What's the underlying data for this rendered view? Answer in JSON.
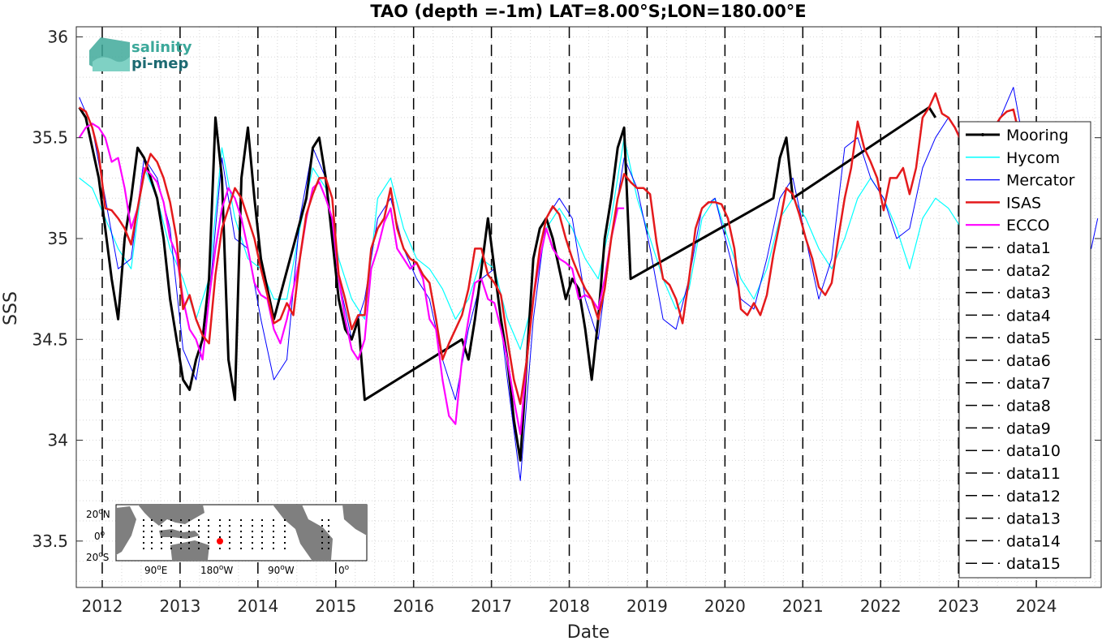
{
  "chart_data": {
    "type": "line",
    "title": "TAO (depth =-1m) LAT=8.00°S;LON=180.00°E",
    "xlabel": "Date",
    "ylabel": "SSS",
    "xlim": [
      "2011-09-01",
      "2024-11-01"
    ],
    "ylim": [
      33.27,
      36.05
    ],
    "x_ticks": [
      "2012",
      "2013",
      "2014",
      "2015",
      "2016",
      "2017",
      "2018",
      "2019",
      "2020",
      "2021",
      "2022",
      "2023",
      "2024"
    ],
    "y_ticks": [
      "33.5",
      "34",
      "34.5",
      "35",
      "35.5",
      "36"
    ],
    "y_tick_values": [
      33.5,
      34.0,
      34.5,
      35.0,
      35.5,
      36.0
    ],
    "grid": true,
    "legend_position": "right",
    "vertical_lines_x": [
      "2012-01-01",
      "2013-01-01",
      "2014-01-01",
      "2015-01-01",
      "2016-01-01",
      "2017-01-01",
      "2018-01-01",
      "2019-01-01",
      "2020-01-01",
      "2021-01-01",
      "2022-01-01",
      "2023-01-01",
      "2024-01-01"
    ],
    "series": [
      {
        "name": "Mooring",
        "color": "#000000",
        "x": [
          "2011-09",
          "2011-10",
          "2011-11",
          "2011-12",
          "2012-01",
          "2012-02",
          "2012-03",
          "2012-04",
          "2012-05",
          "2012-06",
          "2012-07",
          "2012-08",
          "2012-09",
          "2012-10",
          "2012-11",
          "2012-12",
          "2013-01",
          "2013-02",
          "2013-03",
          "2013-04",
          "2013-05",
          "2013-06",
          "2013-07",
          "2013-08",
          "2013-09",
          "2013-10",
          "2013-11",
          "2013-12",
          "2014-01",
          "2014-02",
          "2014-03",
          "2014-08",
          "2014-09",
          "2014-10",
          "2014-11",
          "2014-12",
          "2015-01",
          "2015-02",
          "2015-03",
          "2015-04",
          "2015-05",
          "2016-08",
          "2016-09",
          "2016-10",
          "2016-11",
          "2016-12",
          "2017-01",
          "2017-02",
          "2017-03",
          "2017-04",
          "2017-05",
          "2017-06",
          "2017-07",
          "2017-08",
          "2017-09",
          "2017-10",
          "2017-11",
          "2017-12",
          "2018-01",
          "2018-02",
          "2018-03",
          "2018-04",
          "2018-05",
          "2018-06",
          "2018-07",
          "2018-08",
          "2018-09",
          "2018-10",
          "2020-08",
          "2020-09",
          "2020-10",
          "2020-11",
          "2022-08",
          "2022-09"
        ],
        "values": [
          35.65,
          35.6,
          35.45,
          35.3,
          35.05,
          34.8,
          34.6,
          35.0,
          35.2,
          35.45,
          35.4,
          35.3,
          35.2,
          35.0,
          34.7,
          34.5,
          34.3,
          34.25,
          34.4,
          34.5,
          34.8,
          35.6,
          35.3,
          34.4,
          34.2,
          35.3,
          35.55,
          35.2,
          34.9,
          34.75,
          34.6,
          35.2,
          35.45,
          35.5,
          35.3,
          35.0,
          34.7,
          34.55,
          34.5,
          34.6,
          34.2,
          34.5,
          34.4,
          34.6,
          34.85,
          35.1,
          34.85,
          34.6,
          34.4,
          34.1,
          33.9,
          34.4,
          34.9,
          35.05,
          35.1,
          35.0,
          34.85,
          34.7,
          34.8,
          34.75,
          34.55,
          34.3,
          34.6,
          35.0,
          35.2,
          35.45,
          35.55,
          34.8,
          35.2,
          35.4,
          35.5,
          35.2,
          35.65,
          35.6
        ]
      },
      {
        "name": "Hycom",
        "color": "#00ffff",
        "x": [
          "2011-09",
          "2011-11",
          "2012-01",
          "2012-03",
          "2012-05",
          "2012-07",
          "2012-09",
          "2012-11",
          "2013-01",
          "2013-03",
          "2013-05",
          "2013-07",
          "2013-09",
          "2013-11",
          "2014-01",
          "2014-03",
          "2014-05",
          "2014-07",
          "2014-09",
          "2014-11",
          "2015-01",
          "2015-03",
          "2015-05",
          "2015-07",
          "2015-09",
          "2015-11",
          "2016-01",
          "2016-03",
          "2016-05",
          "2016-07",
          "2016-09",
          "2016-11",
          "2017-01",
          "2017-03",
          "2017-05",
          "2017-07",
          "2017-09",
          "2017-11",
          "2018-01",
          "2018-03",
          "2018-05",
          "2018-07",
          "2018-09",
          "2018-11",
          "2019-01",
          "2019-03",
          "2019-05",
          "2019-07",
          "2019-09",
          "2019-11",
          "2020-01",
          "2020-03",
          "2020-05",
          "2020-07",
          "2020-09",
          "2020-11",
          "2021-01",
          "2021-03",
          "2021-05",
          "2021-07",
          "2021-09",
          "2021-11",
          "2022-01",
          "2022-03",
          "2022-05",
          "2022-07",
          "2022-09",
          "2022-11",
          "2023-01",
          "2023-03",
          "2023-05",
          "2023-07",
          "2023-09"
        ],
        "values": [
          35.3,
          35.25,
          35.1,
          34.95,
          34.85,
          35.35,
          35.2,
          34.95,
          34.8,
          34.6,
          34.8,
          35.45,
          35.1,
          34.9,
          34.85,
          34.7,
          34.7,
          35.05,
          35.35,
          35.25,
          34.9,
          34.7,
          34.6,
          35.2,
          35.3,
          35.05,
          34.9,
          34.85,
          34.75,
          34.6,
          34.7,
          34.9,
          34.85,
          34.6,
          34.45,
          34.7,
          35.05,
          35.15,
          35.05,
          34.9,
          34.8,
          35.1,
          35.5,
          35.2,
          35.0,
          34.8,
          34.65,
          34.75,
          35.1,
          35.2,
          35.0,
          34.8,
          34.7,
          34.85,
          35.1,
          35.2,
          35.1,
          34.95,
          34.85,
          35.0,
          35.2,
          35.3,
          35.2,
          35.05,
          34.85,
          35.1,
          35.2,
          35.15,
          35.05,
          35.1,
          35.15,
          35.2,
          35.2
        ]
      },
      {
        "name": "Mercator",
        "color": "#0000ff",
        "x": [
          "2011-09",
          "2011-11",
          "2012-01",
          "2012-03",
          "2012-05",
          "2012-07",
          "2012-09",
          "2012-11",
          "2013-01",
          "2013-03",
          "2013-05",
          "2013-07",
          "2013-09",
          "2013-11",
          "2014-01",
          "2014-03",
          "2014-05",
          "2014-07",
          "2014-09",
          "2014-11",
          "2015-01",
          "2015-03",
          "2015-05",
          "2015-07",
          "2015-09",
          "2015-11",
          "2016-01",
          "2016-03",
          "2016-05",
          "2016-07",
          "2016-09",
          "2016-11",
          "2017-01",
          "2017-03",
          "2017-05",
          "2017-07",
          "2017-09",
          "2017-11",
          "2018-01",
          "2018-03",
          "2018-05",
          "2018-07",
          "2018-09",
          "2018-11",
          "2019-01",
          "2019-03",
          "2019-05",
          "2019-07",
          "2019-09",
          "2019-11",
          "2020-01",
          "2020-03",
          "2020-05",
          "2020-07",
          "2020-09",
          "2020-11",
          "2021-01",
          "2021-03",
          "2021-05",
          "2021-07",
          "2021-09",
          "2021-11",
          "2022-01",
          "2022-03",
          "2022-05",
          "2022-07",
          "2022-09",
          "2022-11",
          "2023-01",
          "2023-03",
          "2023-05",
          "2023-07",
          "2023-09",
          "2023-11",
          "2024-01",
          "2024-03",
          "2024-05",
          "2024-07",
          "2024-09",
          "2024-10"
        ],
        "values": [
          35.7,
          35.55,
          35.2,
          34.85,
          34.9,
          35.4,
          35.3,
          35.05,
          34.45,
          34.3,
          34.7,
          35.4,
          35.0,
          34.95,
          34.6,
          34.3,
          34.4,
          35.1,
          35.45,
          35.3,
          34.8,
          34.5,
          34.7,
          35.1,
          35.2,
          34.95,
          34.8,
          34.7,
          34.4,
          34.2,
          34.55,
          34.8,
          34.85,
          34.3,
          33.8,
          34.6,
          35.1,
          35.2,
          35.1,
          34.7,
          34.5,
          35.0,
          35.4,
          35.25,
          34.95,
          34.6,
          34.55,
          34.8,
          35.15,
          35.2,
          34.95,
          34.7,
          34.65,
          34.9,
          35.2,
          35.3,
          35.0,
          34.7,
          34.9,
          35.45,
          35.5,
          35.3,
          35.2,
          35.0,
          35.05,
          35.35,
          35.5,
          35.6,
          35.5,
          35.45,
          35.4,
          35.6,
          35.75,
          35.4,
          35.0,
          34.85,
          34.8,
          35.0,
          34.95,
          35.1
        ]
      },
      {
        "name": "ISAS",
        "color": "#e41a1c",
        "x": [
          "2011-09",
          "2011-10",
          "2011-11",
          "2011-12",
          "2012-01",
          "2012-02",
          "2012-03",
          "2012-04",
          "2012-05",
          "2012-06",
          "2012-07",
          "2012-08",
          "2012-09",
          "2012-10",
          "2012-11",
          "2012-12",
          "2013-01",
          "2013-02",
          "2013-03",
          "2013-04",
          "2013-05",
          "2013-06",
          "2013-07",
          "2013-08",
          "2013-09",
          "2013-10",
          "2013-11",
          "2013-12",
          "2014-01",
          "2014-02",
          "2014-03",
          "2014-04",
          "2014-05",
          "2014-06",
          "2014-07",
          "2014-08",
          "2014-09",
          "2014-10",
          "2014-11",
          "2014-12",
          "2015-01",
          "2015-02",
          "2015-03",
          "2015-04",
          "2015-05",
          "2015-06",
          "2015-07",
          "2015-08",
          "2015-09",
          "2015-10",
          "2015-11",
          "2015-12",
          "2016-01",
          "2016-02",
          "2016-03",
          "2016-04",
          "2016-05",
          "2016-06",
          "2016-07",
          "2016-08",
          "2016-09",
          "2016-10",
          "2016-11",
          "2016-12",
          "2017-01",
          "2017-02",
          "2017-03",
          "2017-04",
          "2017-05",
          "2017-06",
          "2017-07",
          "2017-08",
          "2017-09",
          "2017-10",
          "2017-11",
          "2017-12",
          "2018-01",
          "2018-02",
          "2018-03",
          "2018-04",
          "2018-05",
          "2018-06",
          "2018-07",
          "2018-08",
          "2018-09",
          "2018-10",
          "2018-11",
          "2018-12",
          "2019-01",
          "2019-02",
          "2019-03",
          "2019-04",
          "2019-05",
          "2019-06",
          "2019-07",
          "2019-08",
          "2019-09",
          "2019-10",
          "2019-11",
          "2019-12",
          "2020-01",
          "2020-02",
          "2020-03",
          "2020-04",
          "2020-05",
          "2020-06",
          "2020-07",
          "2020-08",
          "2020-09",
          "2020-10",
          "2020-11",
          "2020-12",
          "2021-01",
          "2021-02",
          "2021-03",
          "2021-04",
          "2021-05",
          "2021-06",
          "2021-07",
          "2021-08",
          "2021-09",
          "2021-10",
          "2021-11",
          "2021-12",
          "2022-01",
          "2022-02",
          "2022-03",
          "2022-04",
          "2022-05",
          "2022-06",
          "2022-07",
          "2022-08",
          "2022-09",
          "2022-10",
          "2022-11",
          "2022-12",
          "2023-01",
          "2023-02",
          "2023-03",
          "2023-04",
          "2023-05",
          "2023-06",
          "2023-07",
          "2023-08",
          "2023-09",
          "2023-10"
        ],
        "values": [
          35.65,
          35.63,
          35.55,
          35.42,
          35.15,
          35.14,
          35.1,
          35.05,
          34.97,
          35.15,
          35.32,
          35.42,
          35.38,
          35.3,
          35.18,
          35.0,
          34.65,
          34.72,
          34.6,
          34.52,
          34.48,
          34.82,
          35.05,
          35.15,
          35.25,
          35.2,
          35.1,
          35.0,
          34.85,
          34.72,
          34.58,
          34.6,
          34.68,
          34.62,
          34.9,
          35.12,
          35.22,
          35.3,
          35.3,
          35.2,
          34.82,
          34.7,
          34.55,
          34.62,
          34.62,
          34.95,
          35.05,
          35.1,
          35.25,
          35.05,
          34.95,
          34.9,
          34.88,
          34.82,
          34.78,
          34.6,
          34.4,
          34.48,
          34.55,
          34.62,
          34.75,
          34.95,
          34.95,
          34.82,
          34.78,
          34.72,
          34.5,
          34.3,
          34.18,
          34.4,
          34.7,
          34.95,
          35.1,
          35.16,
          35.12,
          35.0,
          34.9,
          34.82,
          34.75,
          34.7,
          34.6,
          34.75,
          35.0,
          35.2,
          35.32,
          35.28,
          35.25,
          35.25,
          35.22,
          34.98,
          34.8,
          34.77,
          34.7,
          34.58,
          34.8,
          35.05,
          35.15,
          35.18,
          35.18,
          35.17,
          35.1,
          34.95,
          34.65,
          34.62,
          34.68,
          34.62,
          34.72,
          34.92,
          35.08,
          35.25,
          35.22,
          35.12,
          35.0,
          34.9,
          34.76,
          34.72,
          34.78,
          35.0,
          35.2,
          35.35,
          35.58,
          35.45,
          35.38,
          35.3,
          35.14,
          35.3,
          35.3,
          35.35,
          35.22,
          35.35,
          35.6,
          35.65,
          35.72,
          35.62,
          35.6,
          35.55,
          35.48,
          35.48,
          35.5,
          35.48,
          35.52,
          35.55,
          35.6,
          35.63,
          35.64,
          35.5
        ]
      },
      {
        "name": "ECCO",
        "color": "#ff00ff",
        "x": [
          "2011-09",
          "2011-10",
          "2011-11",
          "2011-12",
          "2012-01",
          "2012-02",
          "2012-03",
          "2012-04",
          "2012-05",
          "2012-06",
          "2012-07",
          "2012-08",
          "2012-09",
          "2012-10",
          "2012-11",
          "2012-12",
          "2013-01",
          "2013-02",
          "2013-03",
          "2013-04",
          "2013-05",
          "2013-06",
          "2013-07",
          "2013-08",
          "2013-09",
          "2013-10",
          "2013-11",
          "2013-12",
          "2014-01",
          "2014-02",
          "2014-03",
          "2014-04",
          "2014-05",
          "2014-06",
          "2014-07",
          "2014-08",
          "2014-09",
          "2014-10",
          "2014-11",
          "2014-12",
          "2015-01",
          "2015-02",
          "2015-03",
          "2015-04",
          "2015-05",
          "2015-06",
          "2015-07",
          "2015-08",
          "2015-09",
          "2015-10",
          "2015-11",
          "2015-12",
          "2016-01",
          "2016-02",
          "2016-03",
          "2016-04",
          "2016-05",
          "2016-06",
          "2016-07",
          "2016-08",
          "2016-09",
          "2016-10",
          "2016-11",
          "2016-12",
          "2017-01",
          "2017-02",
          "2017-03",
          "2017-04",
          "2017-05",
          "2017-06",
          "2017-07",
          "2017-08",
          "2017-09",
          "2017-10",
          "2017-11",
          "2017-12",
          "2018-01",
          "2018-02",
          "2018-03",
          "2018-04",
          "2018-05",
          "2018-06",
          "2018-07",
          "2018-08",
          "2018-09"
        ],
        "values": [
          35.5,
          35.55,
          35.57,
          35.55,
          35.5,
          35.38,
          35.4,
          35.25,
          35.05,
          35.15,
          35.35,
          35.32,
          35.28,
          35.18,
          35.0,
          34.92,
          34.7,
          34.55,
          34.5,
          34.4,
          34.7,
          34.95,
          35.15,
          35.25,
          35.2,
          35.1,
          34.95,
          34.78,
          34.72,
          34.7,
          34.55,
          34.48,
          34.6,
          34.75,
          34.9,
          35.1,
          35.25,
          35.28,
          35.2,
          35.1,
          34.8,
          34.6,
          34.45,
          34.4,
          34.5,
          34.85,
          34.95,
          35.08,
          35.15,
          34.95,
          34.9,
          34.85,
          34.88,
          34.8,
          34.6,
          34.55,
          34.3,
          34.12,
          34.08,
          34.4,
          34.6,
          34.78,
          34.8,
          34.7,
          34.68,
          34.55,
          34.4,
          34.2,
          34.03,
          34.4,
          34.7,
          34.9,
          35.05,
          34.95,
          34.9,
          34.88,
          34.85,
          34.7,
          34.72,
          34.7,
          34.65,
          34.8,
          35.0,
          35.15,
          35.15
        ]
      }
    ],
    "legend_entries": [
      "Mooring",
      "Hycom",
      "Mercator",
      "ISAS",
      "ECCO",
      "data1",
      "data2",
      "data3",
      "data4",
      "data5",
      "data6",
      "data7",
      "data8",
      "data9",
      "data10",
      "data11",
      "data12",
      "data13",
      "data14",
      "data15"
    ]
  },
  "logo": {
    "line1": "salinity",
    "line2": "pi-mep"
  },
  "inset_map": {
    "lat_labels": [
      "20",
      "0",
      "20"
    ],
    "lat_suffix": [
      "N",
      "",
      "S"
    ],
    "lon_labels": [
      "90",
      "180",
      "90",
      "0"
    ],
    "lon_suffix": [
      "E",
      "W",
      "W",
      ""
    ],
    "degree": "o",
    "marker_color": "#ff0000"
  }
}
